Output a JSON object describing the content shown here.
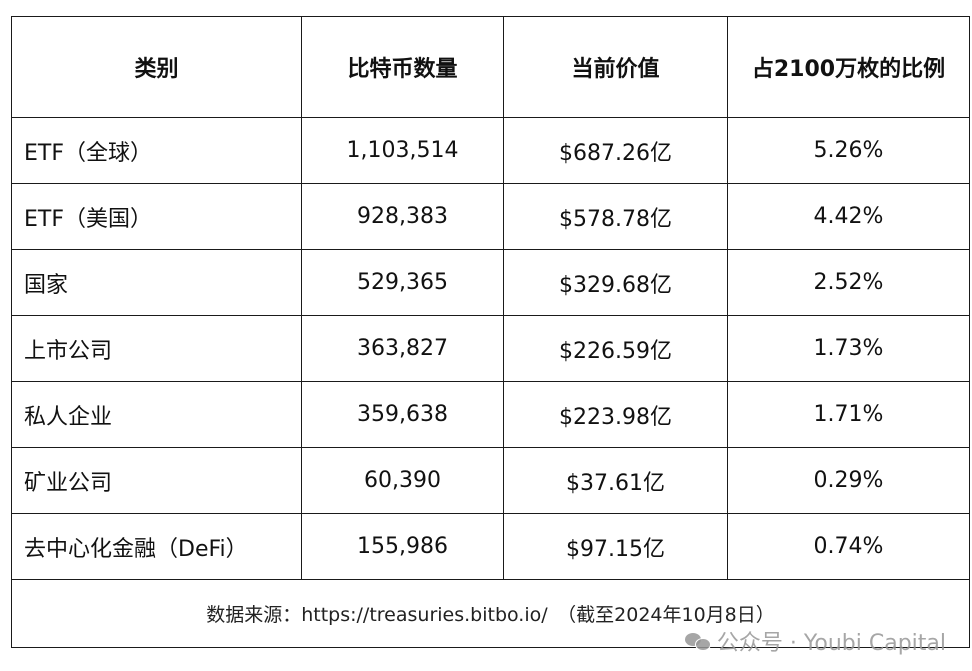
{
  "headers": [
    "类别",
    "比特币数量",
    "当前价值",
    "占2100万枚的比例"
  ],
  "rows": [
    {
      "category": "ETF（全球）",
      "btc": "1,103,514",
      "value": "$687.26亿",
      "ratio": "5.26%"
    },
    {
      "category": "ETF（美国）",
      "btc": "928,383",
      "value": "$578.78亿",
      "ratio": "4.42%"
    },
    {
      "category": "国家",
      "btc": "529,365",
      "value": "$329.68亿",
      "ratio": "2.52%"
    },
    {
      "category": "上市公司",
      "btc": "363,827",
      "value": "$226.59亿",
      "ratio": "1.73%"
    },
    {
      "category": "私人企业",
      "btc": "359,638",
      "value": "$223.98亿",
      "ratio": "1.71%"
    },
    {
      "category": "矿业公司",
      "btc": "60,390",
      "value": "$37.61亿",
      "ratio": "0.29%"
    },
    {
      "category": "去中心化金融（DeFi）",
      "btc": "155,986",
      "value": "$97.15亿",
      "ratio": "0.74%"
    }
  ],
  "source": "数据来源：https://treasuries.bitbo.io/　（截至2024年10月8日）",
  "watermark": {
    "icon": "wechat-icon",
    "text": "公众号 · Youbi Capital"
  }
}
